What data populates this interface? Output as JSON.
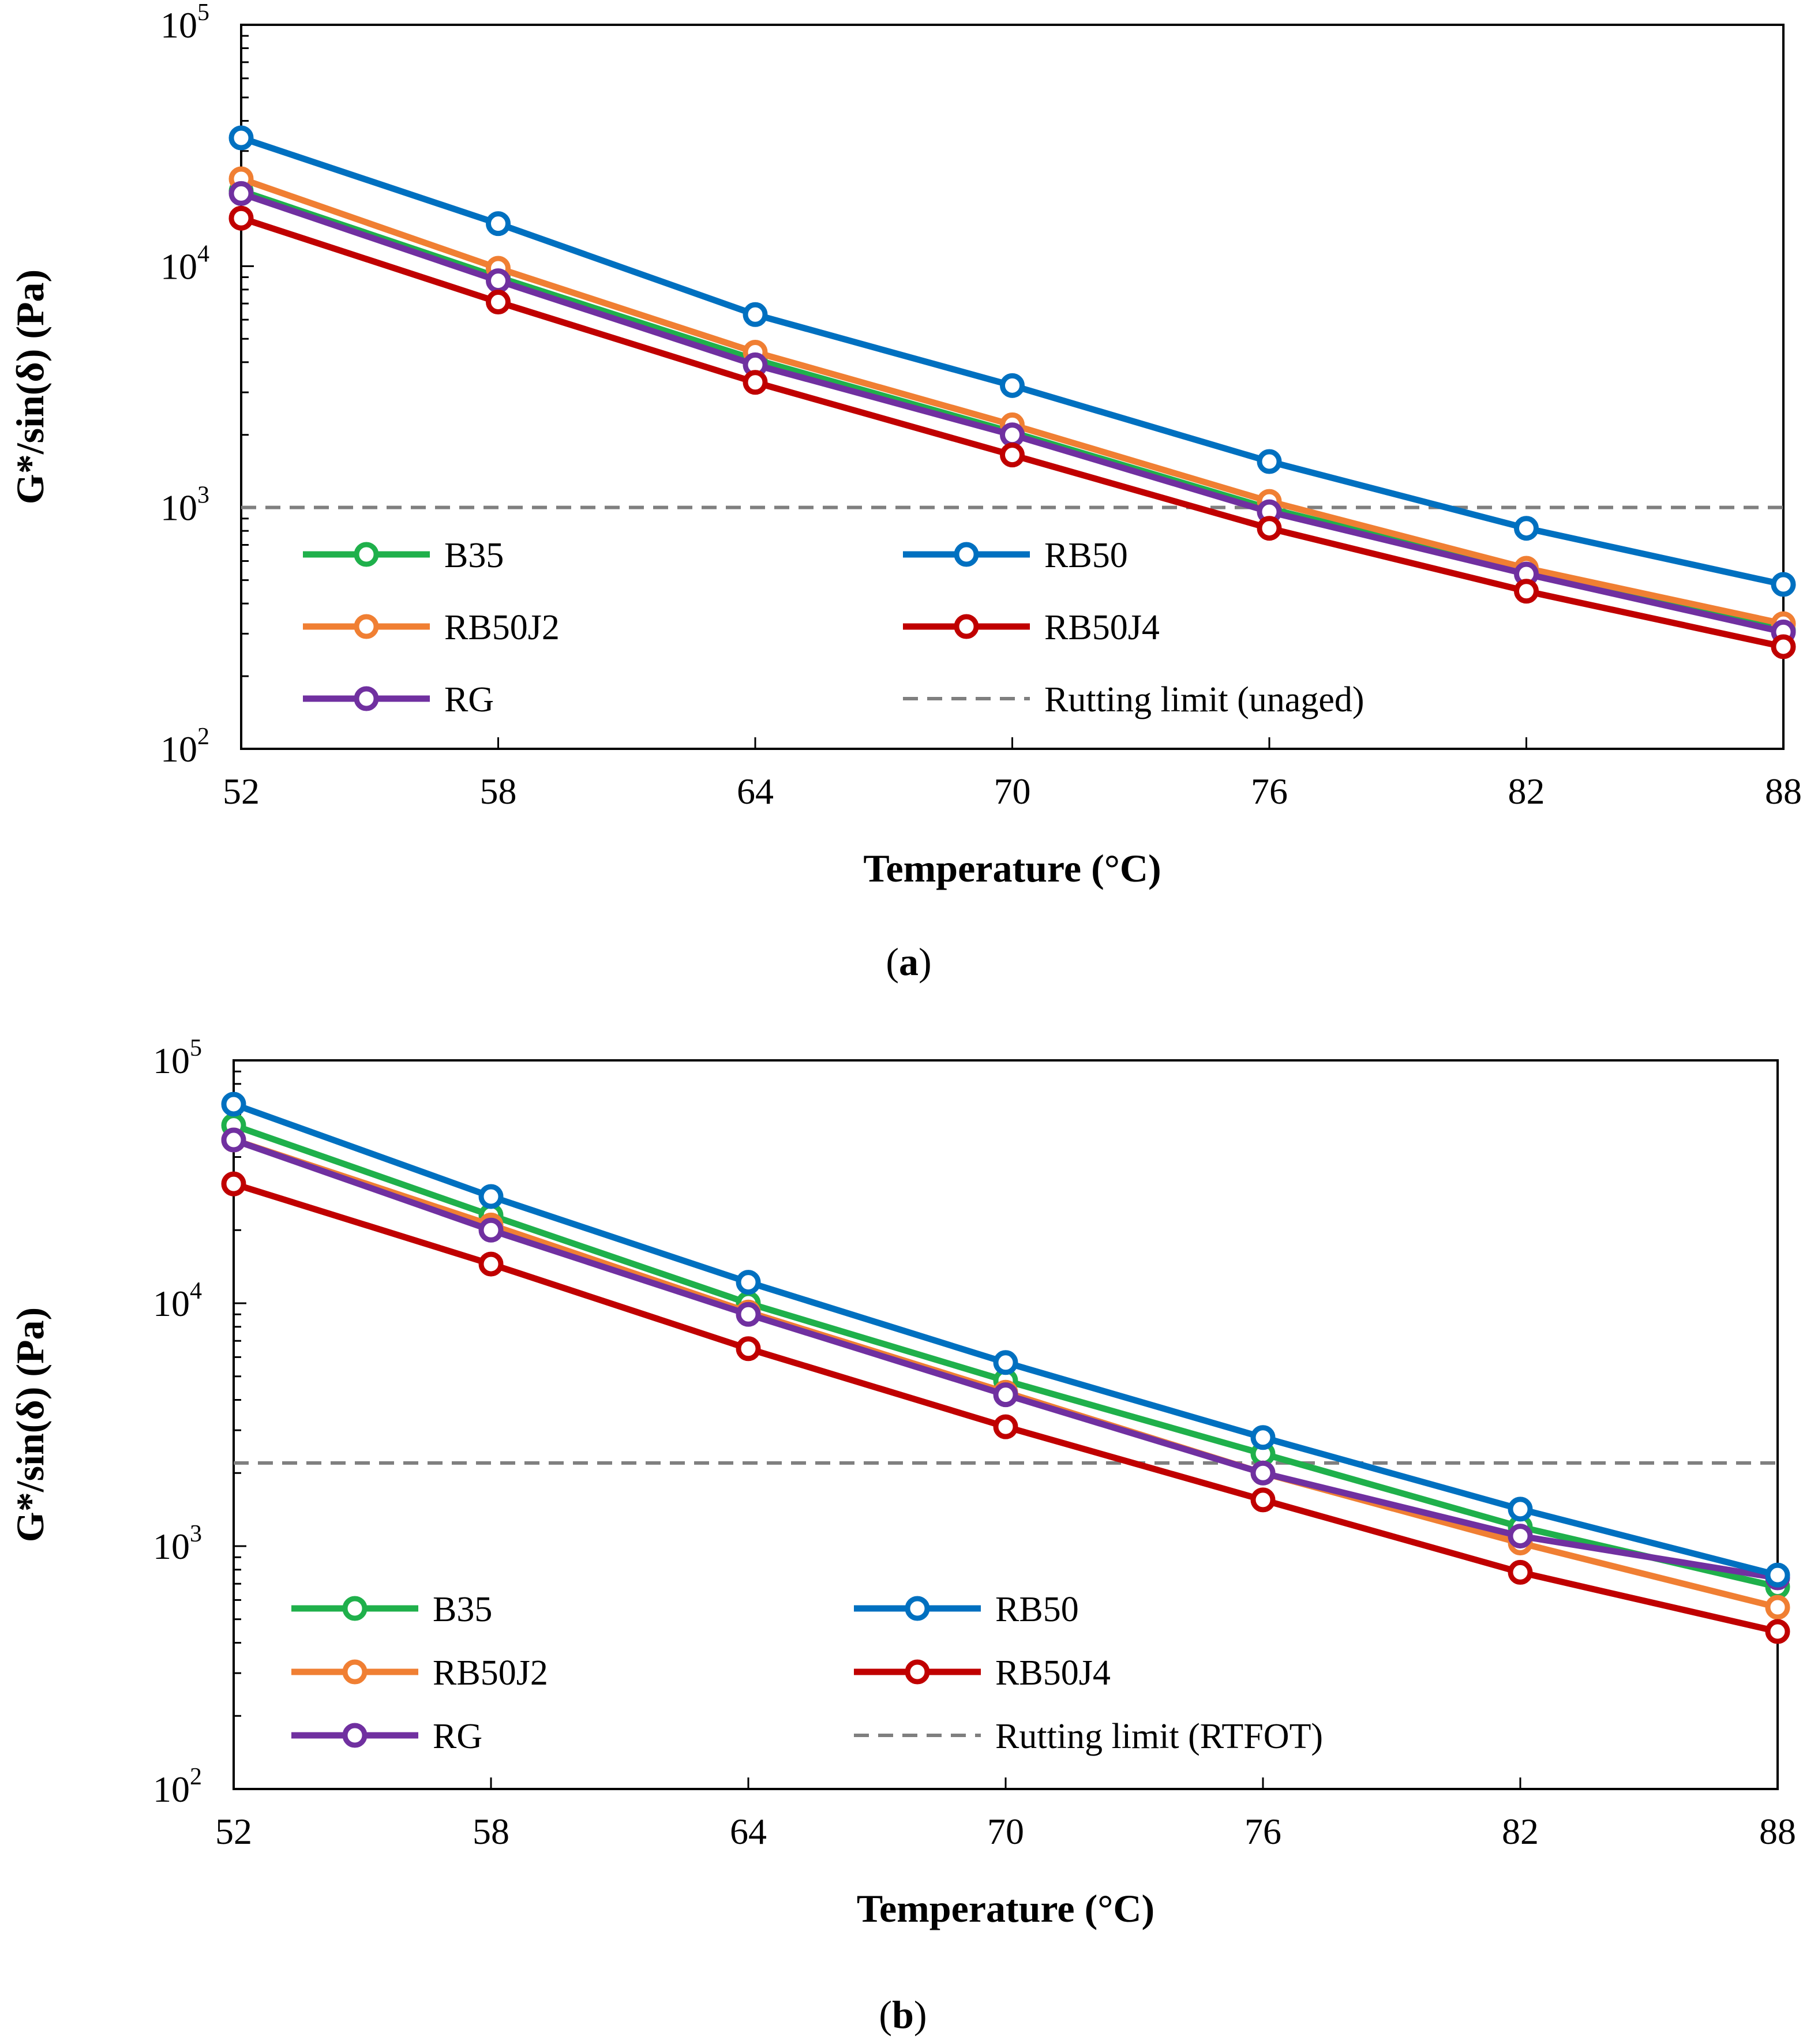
{
  "figure": {
    "panels": [
      "a",
      "b"
    ]
  },
  "chart_data": [
    {
      "id": "a",
      "caption": "a",
      "type": "line",
      "yscale": "log",
      "ylim": [
        100,
        100000
      ],
      "xlim": [
        52,
        88
      ],
      "xticks": [
        52,
        58,
        64,
        70,
        76,
        82,
        88
      ],
      "yticks": [
        {
          "value": 100,
          "label_base": "10",
          "label_exp": "2"
        },
        {
          "value": 1000,
          "label_base": "10",
          "label_exp": "3"
        },
        {
          "value": 10000,
          "label_base": "10",
          "label_exp": "4"
        },
        {
          "value": 100000,
          "label_base": "10",
          "label_exp": "5"
        }
      ],
      "xlabel": "Temperature (°C)",
      "ylabel": "G*/sin(δ) (Pa)",
      "x": [
        52,
        58,
        64,
        70,
        76,
        82,
        88
      ],
      "series": [
        {
          "name": "B35",
          "color": "#1fb04b",
          "values": [
            20500,
            9000,
            4100,
            2050,
            990,
            540,
            310
          ]
        },
        {
          "name": "RB50J2",
          "color": "#f07f33",
          "values": [
            23000,
            9800,
            4400,
            2200,
            1060,
            560,
            330
          ]
        },
        {
          "name": "RG",
          "color": "#7030a0",
          "values": [
            20000,
            8700,
            3900,
            2000,
            960,
            530,
            305
          ]
        },
        {
          "name": "RB50J4",
          "color": "#c00000",
          "values": [
            15800,
            7100,
            3300,
            1650,
            820,
            450,
            265
          ]
        },
        {
          "name": "RB50",
          "color": "#0070c0",
          "values": [
            34000,
            15000,
            6300,
            3200,
            1550,
            820,
            480
          ]
        }
      ],
      "reference_line": {
        "name": "Rutting limit (unaged)",
        "value": 1000,
        "color": "#7f7f7f"
      },
      "legend": {
        "placement": "lower-left",
        "order": [
          "B35",
          "RB50",
          "RB50J2",
          "RB50J4",
          "RG",
          "Rutting limit (unaged)"
        ]
      }
    },
    {
      "id": "b",
      "caption": "b",
      "type": "line",
      "yscale": "log",
      "ylim": [
        100,
        100000
      ],
      "xlim": [
        52,
        88
      ],
      "xticks": [
        52,
        58,
        64,
        70,
        76,
        82,
        88
      ],
      "yticks": [
        {
          "value": 100,
          "label_base": "10",
          "label_exp": "2"
        },
        {
          "value": 1000,
          "label_base": "10",
          "label_exp": "3"
        },
        {
          "value": 10000,
          "label_base": "10",
          "label_exp": "4"
        },
        {
          "value": 100000,
          "label_base": "10",
          "label_exp": "5"
        }
      ],
      "xlabel": "Temperature (°C)",
      "ylabel": "G*/sin(δ) (Pa)",
      "x": [
        52,
        58,
        64,
        70,
        76,
        82,
        88
      ],
      "series": [
        {
          "name": "B35",
          "color": "#1fb04b",
          "values": [
            54000,
            23000,
            10000,
            4800,
            2400,
            1200,
            680
          ]
        },
        {
          "name": "RB50J2",
          "color": "#f07f33",
          "values": [
            47000,
            21000,
            9200,
            4300,
            2000,
            1030,
            560
          ]
        },
        {
          "name": "RG",
          "color": "#7030a0",
          "values": [
            47000,
            20000,
            9000,
            4200,
            2000,
            1100,
            740
          ]
        },
        {
          "name": "RB50J4",
          "color": "#c00000",
          "values": [
            31000,
            14500,
            6500,
            3100,
            1550,
            780,
            445
          ]
        },
        {
          "name": "RB50",
          "color": "#0070c0",
          "values": [
            66000,
            27500,
            12200,
            5700,
            2800,
            1420,
            760
          ]
        }
      ],
      "reference_line": {
        "name": "Rutting limit (RTFOT)",
        "value": 2200,
        "color": "#7f7f7f"
      },
      "legend": {
        "placement": "lower-left",
        "order": [
          "B35",
          "RB50",
          "RB50J2",
          "RB50J4",
          "RG",
          "Rutting limit (RTFOT)"
        ]
      }
    }
  ]
}
